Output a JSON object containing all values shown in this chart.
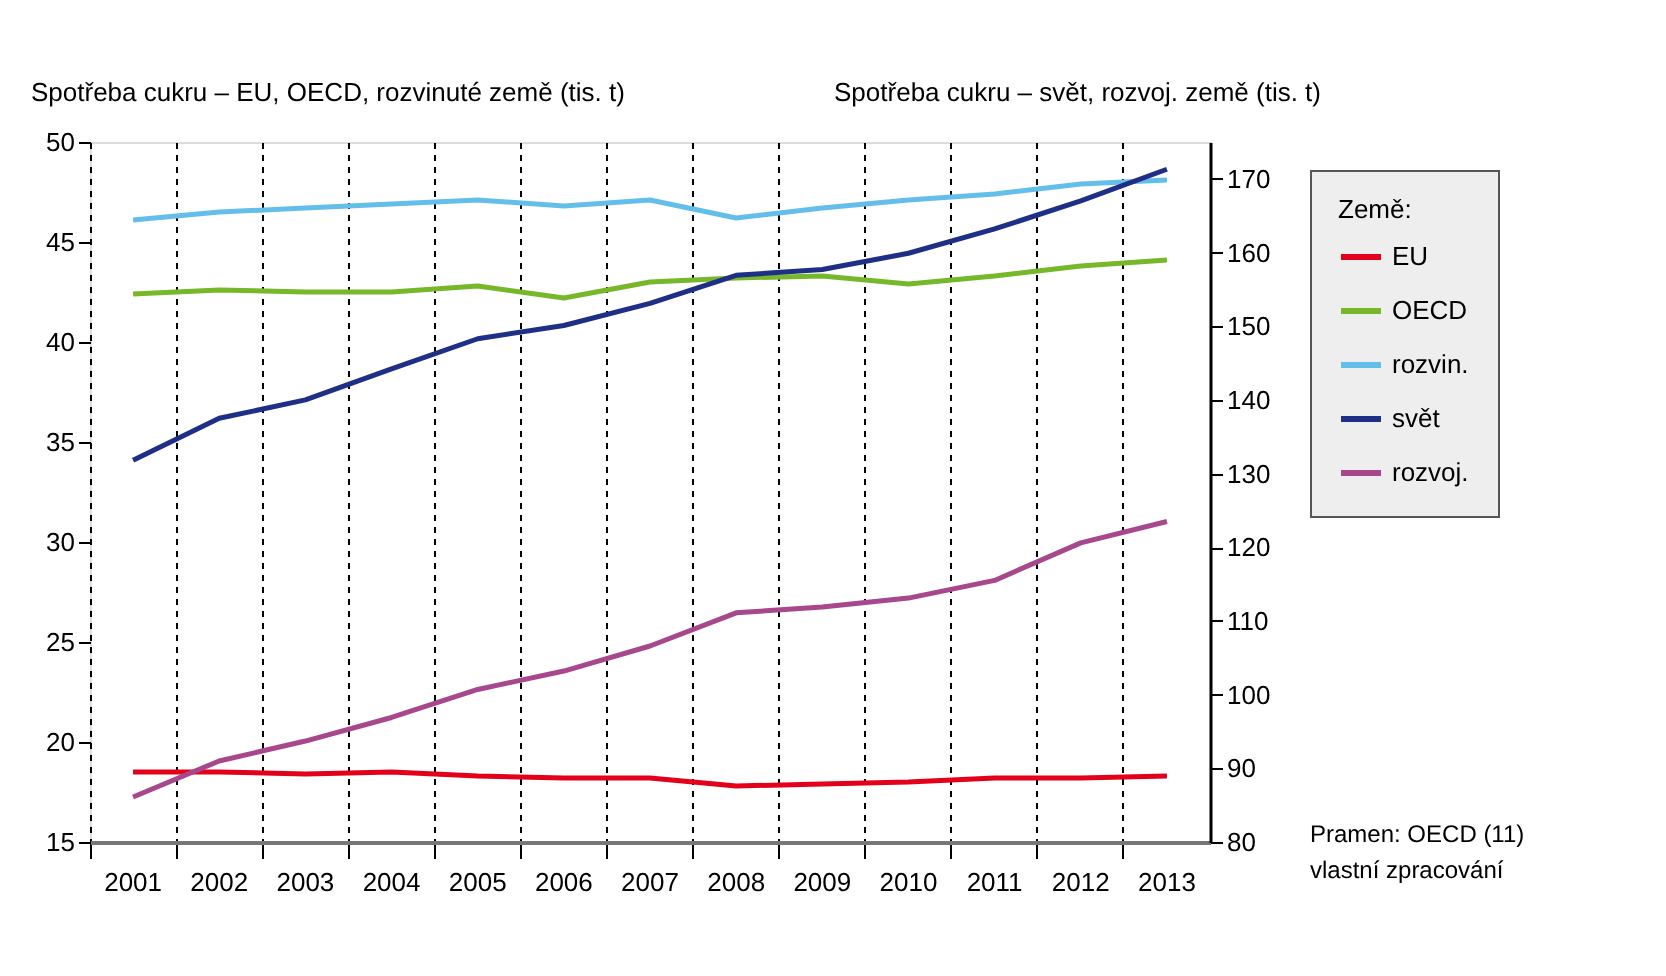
{
  "chart_data": {
    "type": "line",
    "ylabel": "Spotřeba cukru – EU, OECD, rozvinuté země (tis. t)",
    "y2label": "Spotřeba cukru – svět, rozvoj. země (tis. t)",
    "legend_title": "Země:",
    "categories": [
      "2001",
      "2002",
      "2003",
      "2004",
      "2005",
      "2006",
      "2007",
      "2008",
      "2009",
      "2010",
      "2011",
      "2012",
      "2013"
    ],
    "series": [
      {
        "name": "EU",
        "color": "#e3001b",
        "values": [
          18.5,
          18.5,
          18.4,
          18.5,
          18.3,
          18.2,
          18.2,
          17.8,
          17.9,
          18.0,
          18.2,
          18.2,
          18.3
        ]
      },
      {
        "name": "OECD",
        "color": "#77b82a",
        "values": [
          42.4,
          42.6,
          42.5,
          42.5,
          42.8,
          42.2,
          43.0,
          43.2,
          43.3,
          42.9,
          43.3,
          43.8,
          44.1
        ]
      },
      {
        "name": "rozvin.",
        "color": "#63bfea",
        "values": [
          46.1,
          46.5,
          46.7,
          46.9,
          47.1,
          46.8,
          47.1,
          46.2,
          46.7,
          47.1,
          47.4,
          47.9,
          48.1
        ]
      },
      {
        "name": "svět",
        "color": "#1f2f86",
        "axis": "y2",
        "values": [
          131.8,
          137.5,
          140.0,
          144.2,
          148.3,
          150.1,
          153.1,
          156.9,
          157.7,
          159.9,
          163.2,
          167.0,
          171.3
        ]
      },
      {
        "name": "rozvoj.",
        "color": "#a8488c",
        "axis": "y2",
        "values": [
          86.1,
          91.0,
          93.7,
          96.9,
          100.7,
          103.2,
          106.6,
          111.1,
          111.9,
          113.1,
          115.5,
          120.6,
          123.5
        ]
      }
    ],
    "ylim": [
      15,
      50
    ],
    "yticks": [
      15,
      20,
      25,
      30,
      35,
      40,
      45,
      50
    ],
    "y2lim": [
      80,
      175
    ],
    "y2ticks": [
      80,
      90,
      100,
      110,
      120,
      130,
      140,
      150,
      160,
      170
    ],
    "grid": "x",
    "legend": "top right",
    "line_style": "solid",
    "annotations": [
      "Pramen: OECD (11)",
      "vlastní zpracování"
    ]
  }
}
